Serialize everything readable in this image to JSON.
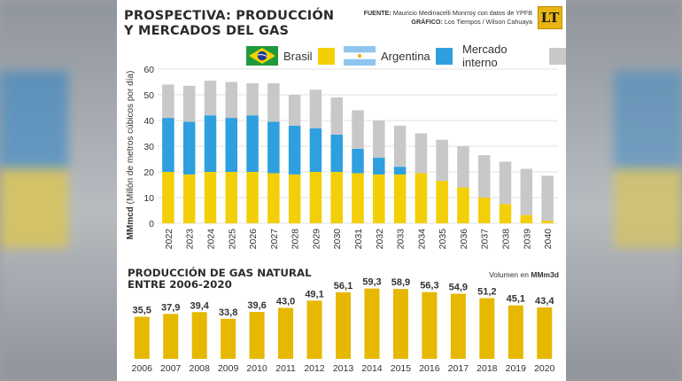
{
  "header": {
    "title_line1": "PROSPECTIVA: PRODUCCIÓN",
    "title_line2": "Y MERCADOS DEL GAS",
    "source_label": "FUENTE:",
    "source_text": "Mauricio Medinacelli Monrroy con datos de YPFB",
    "graphic_label": "GRÁFICO:",
    "graphic_text": "Los Tiempos / Wilson Cahuaya",
    "logo_text": "LT"
  },
  "legend": [
    {
      "label": "Brasil",
      "color": "#f2cf06",
      "flag": "brazil-flag-icon"
    },
    {
      "label": "Argentina",
      "color": "#2e9fdf",
      "flag": "argentina-flag-icon"
    },
    {
      "label": "Mercado interno",
      "color": "#c8c8c8",
      "flag": ""
    }
  ],
  "chart_data": [
    {
      "type": "bar",
      "stacked": true,
      "title": "PROSPECTIVA: PRODUCCIÓN Y MERCADOS DEL GAS",
      "ylabel": "MMmcd (Millón de metros cúbicos por día)",
      "xlabel": "",
      "ylim": [
        0,
        60
      ],
      "yticks": [
        0,
        10,
        20,
        30,
        40,
        50,
        60
      ],
      "grid": true,
      "legend_position": "top",
      "categories": [
        "2022",
        "2023",
        "2024",
        "2025",
        "2026",
        "2027",
        "2028",
        "2029",
        "2030",
        "2031",
        "2032",
        "2033",
        "2034",
        "2035",
        "2036",
        "2037",
        "2038",
        "2039",
        "2040"
      ],
      "series": [
        {
          "name": "Brasil",
          "color": "#f2cf06",
          "values": [
            20,
            19,
            20,
            20,
            20,
            19.5,
            19,
            20,
            20,
            19.5,
            19,
            19,
            19.5,
            16.5,
            14,
            10,
            7.5,
            3.2,
            1
          ]
        },
        {
          "name": "Argentina",
          "color": "#2e9fdf",
          "values": [
            21,
            20.5,
            22,
            21,
            22,
            20,
            19,
            17,
            14.5,
            9.5,
            6.5,
            3,
            0,
            0,
            0,
            0,
            0,
            0,
            0
          ]
        },
        {
          "name": "Mercado interno",
          "color": "#c8c8c8",
          "values": [
            13,
            14,
            13.5,
            14,
            12.5,
            15,
            12,
            15,
            14.5,
            15,
            14.5,
            16,
            15.5,
            16,
            16,
            16.5,
            16.5,
            18,
            17.5
          ]
        }
      ]
    },
    {
      "type": "bar",
      "title": "PRODUCCIÓN DE GAS NATURAL ENTRE 2006-2020",
      "unit_label": "Volumen en",
      "unit": "MMm3d",
      "ylim": [
        0,
        65
      ],
      "categories": [
        "2006",
        "2007",
        "2008",
        "2009",
        "2010",
        "2011",
        "2012",
        "2013",
        "2014",
        "2015",
        "2016",
        "2017",
        "2018",
        "2019",
        "2020"
      ],
      "labels": [
        "35,5",
        "37,9",
        "39,4",
        "33,8",
        "39,6",
        "43,0",
        "49,1",
        "56,1",
        "59,3",
        "58,9",
        "56,3",
        "54,9",
        "51,2",
        "45,1",
        "43,4"
      ],
      "values": [
        35.5,
        37.9,
        39.4,
        33.8,
        39.6,
        43.0,
        49.1,
        56.1,
        59.3,
        58.9,
        56.3,
        54.9,
        51.2,
        45.1,
        43.4
      ],
      "color": "#e6b800"
    }
  ]
}
